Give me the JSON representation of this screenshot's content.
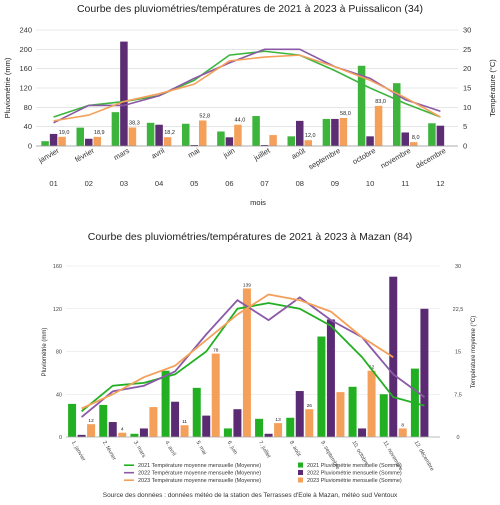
{
  "charts": [
    {
      "title": "Courbe des pluviométries/températures de 2021 à 2023 à Puissalicon (34)",
      "ylabel_left": "Pluviométrie (mm)",
      "ylabel_right": "Température (°C)",
      "xlabel": "mois",
      "month_names": [
        "janvier",
        "février",
        "mars",
        "avril",
        "mai",
        "juin",
        "juillet",
        "août",
        "septembre",
        "octobre",
        "novembre",
        "décembre"
      ],
      "month_numbers": [
        "01",
        "02",
        "03",
        "04",
        "05",
        "06",
        "07",
        "08",
        "09",
        "10",
        "11",
        "12"
      ]
    },
    {
      "title": "Courbe des pluviométries/températures de 2021 à 2023 à Mazan (84)",
      "ylabel_left": "Pluviométrie (mm)",
      "ylabel_right": "Température moyenne (°C)",
      "month_labels": [
        "1. janvier",
        "2. février",
        "3. mars",
        "4. avril",
        "5. mai",
        "6. juin",
        "7. juillet",
        "8. août",
        "9. septembre",
        "10. octobre",
        "11. novembre",
        "12. décembre"
      ],
      "legend": [
        "2021 Température moyenne mensuelle (Moyenne)",
        "2022 Température moyenne mensuelle (Moyenne)",
        "2023 Température moyenne mensuelle (Moyenne)",
        "2021 Pluviométrie mensuelle (Somme)",
        "2022 Pluviométrie mensuelle (Somme)",
        "2023 Pluviométrie mensuelle (Somme)"
      ]
    }
  ],
  "source": "Source des données : données météo de la station des Terrasses d'Eole à Mazan, météo sud Ventoux",
  "chart_data": [
    {
      "type": "bar",
      "categories": [
        "01",
        "02",
        "03",
        "04",
        "05",
        "06",
        "07",
        "08",
        "09",
        "10",
        "11",
        "12"
      ],
      "y_left": {
        "min": 0,
        "max": 240,
        "ticks": [
          0,
          40,
          80,
          120,
          160,
          200,
          240
        ]
      },
      "y_right": {
        "min": 0,
        "max": 30,
        "ticks": [
          0,
          5,
          10,
          15,
          20,
          25,
          30
        ]
      },
      "series": [
        {
          "type": "bar",
          "axis": "left",
          "color": "#3db53d",
          "values": [
            10,
            38,
            70,
            48,
            46,
            30,
            62,
            20,
            56,
            166,
            130,
            47
          ]
        },
        {
          "type": "bar",
          "axis": "left",
          "color": "#5c2d73",
          "values": [
            25,
            15,
            216,
            44,
            2,
            18,
            2,
            52,
            56,
            20,
            28,
            42
          ]
        },
        {
          "type": "bar",
          "axis": "left",
          "color": "#f5a05a",
          "values": [
            19,
            18.9,
            38.3,
            18.2,
            52.8,
            44,
            22.6,
            12,
            58,
            83,
            8,
            0
          ]
        },
        {
          "type": "line",
          "axis": "right",
          "color": "#3db53d",
          "values": [
            7.5,
            10.5,
            11.5,
            13,
            17,
            23.5,
            24.5,
            23.5,
            19.5,
            15,
            11,
            7.5
          ]
        },
        {
          "type": "line",
          "axis": "right",
          "color": "#8a5aa6",
          "values": [
            6,
            10.5,
            10.5,
            13,
            17.5,
            21.5,
            25,
            25,
            20.5,
            17.5,
            12,
            9
          ]
        },
        {
          "type": "line",
          "axis": "right",
          "color": "#f5a05a",
          "values": [
            6.5,
            8,
            11.5,
            13.5,
            16,
            22,
            23,
            23.5,
            20.5,
            17,
            12.5,
            7.5
          ]
        }
      ],
      "data_labels": [
        "19,0",
        "18,9",
        "38,3",
        "18,2",
        "52,8",
        "44,0",
        "",
        "12,0",
        "58,0",
        "83,0",
        "8,0",
        ""
      ]
    },
    {
      "type": "bar",
      "categories": [
        "1. janvier",
        "2. février",
        "3. mars",
        "4. avril",
        "5. mai",
        "6. juin",
        "7. juillet",
        "8. août",
        "9. septembre",
        "10. octobre",
        "11. novembre",
        "12. décembre"
      ],
      "y_left": {
        "min": 0,
        "max": 160,
        "ticks": [
          0,
          40,
          80,
          120,
          160
        ]
      },
      "y_right": {
        "min": 0,
        "max": 30,
        "ticks": [
          "0",
          "7,5",
          "15",
          "22,5",
          "30"
        ]
      },
      "series": [
        {
          "name": "2021 Pluviométrie mensuelle (Somme)",
          "type": "bar",
          "axis": "left",
          "color": "#22b022",
          "values": [
            31,
            30,
            3,
            62,
            46,
            8,
            17,
            18,
            94,
            47,
            40,
            64
          ]
        },
        {
          "name": "2022 Pluviométrie mensuelle (Somme)",
          "type": "bar",
          "axis": "left",
          "color": "#5a2a72",
          "values": [
            2,
            14,
            8,
            33,
            20,
            26,
            3,
            43,
            110,
            8,
            150,
            120
          ]
        },
        {
          "name": "2023 Pluviométrie mensuelle (Somme)",
          "type": "bar",
          "axis": "left",
          "color": "#f5a05a",
          "values": [
            12,
            4,
            28,
            11,
            78,
            139,
            13,
            26,
            42,
            62,
            8,
            0
          ]
        },
        {
          "name": "2021 Température moyenne mensuelle (Moyenne)",
          "type": "line",
          "axis": "right",
          "color": "#22b022",
          "values": [
            4.5,
            9,
            9.5,
            11,
            15,
            22.5,
            23.5,
            22.5,
            19.5,
            14,
            7,
            5.5
          ]
        },
        {
          "name": "2022 Température moyenne mensuelle (Moyenne)",
          "type": "line",
          "axis": "right",
          "color": "#8a5aa6",
          "values": [
            3.5,
            8,
            9,
            11.5,
            18,
            24,
            20.5,
            24.5,
            20.5,
            17.5,
            11,
            7
          ]
        },
        {
          "name": "2023 Température moyenne mensuelle (Moyenne)",
          "type": "line",
          "axis": "right",
          "color": "#f5a05a",
          "values": [
            5,
            7.5,
            10.5,
            12.5,
            17,
            21.5,
            25,
            24,
            22,
            17.5,
            14,
            null
          ]
        }
      ],
      "data_labels": [
        "12",
        "4",
        "",
        "11",
        "78",
        "139",
        "13",
        "26",
        "",
        "62",
        "8",
        ""
      ]
    }
  ]
}
